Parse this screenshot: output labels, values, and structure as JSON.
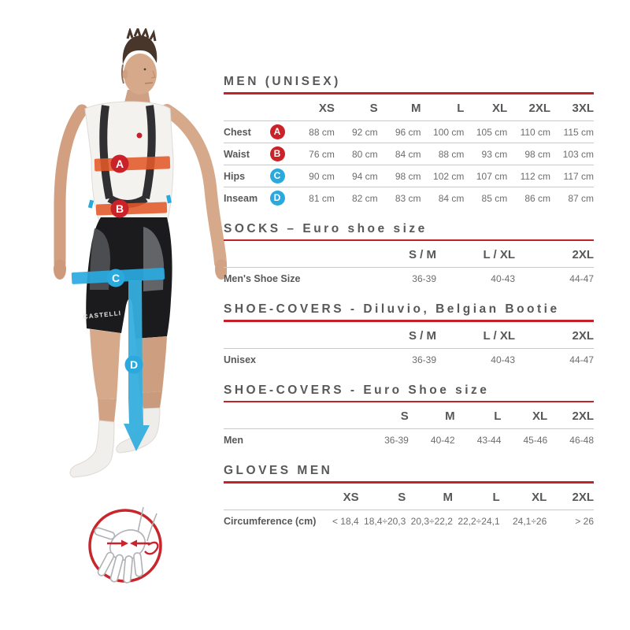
{
  "colors": {
    "accent_red": "#C2232B",
    "badge_red": "#CB2128",
    "band_orange": "#E25829",
    "badge_blue": "#2AA9DF",
    "title_gray": "#57585A",
    "value_gray": "#6C6D70"
  },
  "figure": {
    "brand": "CASTELLI",
    "markers": [
      {
        "letter": "A",
        "color": "#CB2128"
      },
      {
        "letter": "B",
        "color": "#CB2128"
      },
      {
        "letter": "C",
        "color": "#2AA9DF"
      },
      {
        "letter": "D",
        "color": "#2AA9DF"
      }
    ]
  },
  "tables": [
    {
      "title": "MEN (UNISEX)",
      "columns": [
        "XS",
        "S",
        "M",
        "L",
        "XL",
        "2XL",
        "3XL"
      ],
      "rows": [
        {
          "label": "Chest",
          "marker": "A",
          "marker_color": "#CB2128",
          "values": [
            "88 cm",
            "92 cm",
            "96 cm",
            "100 cm",
            "105 cm",
            "110 cm",
            "115 cm"
          ]
        },
        {
          "label": "Waist",
          "marker": "B",
          "marker_color": "#CB2128",
          "values": [
            "76 cm",
            "80 cm",
            "84 cm",
            "88 cm",
            "93 cm",
            "98 cm",
            "103 cm"
          ]
        },
        {
          "label": "Hips",
          "marker": "C",
          "marker_color": "#2AA9DF",
          "values": [
            "90 cm",
            "94 cm",
            "98 cm",
            "102 cm",
            "107 cm",
            "112 cm",
            "117 cm"
          ]
        },
        {
          "label": "Inseam",
          "marker": "D",
          "marker_color": "#2AA9DF",
          "values": [
            "81 cm",
            "82 cm",
            "83 cm",
            "84 cm",
            "85 cm",
            "86 cm",
            "87 cm"
          ]
        }
      ]
    },
    {
      "title": "SOCKS – Euro shoe size",
      "columns": [
        "S / M",
        "L / XL",
        "2XL"
      ],
      "rows": [
        {
          "label": "Men's Shoe Size",
          "values": [
            "36-39",
            "40-43",
            "44-47"
          ]
        }
      ]
    },
    {
      "title": "SHOE-COVERS - Diluvio, Belgian Bootie",
      "columns": [
        "S / M",
        "L / XL",
        "2XL"
      ],
      "rows": [
        {
          "label": "Unisex",
          "values": [
            "36-39",
            "40-43",
            "44-47"
          ]
        }
      ]
    },
    {
      "title": "SHOE-COVERS - Euro Shoe size",
      "columns": [
        "S",
        "M",
        "L",
        "XL",
        "2XL"
      ],
      "rows": [
        {
          "label": "Men",
          "values": [
            "36-39",
            "40-42",
            "43-44",
            "45-46",
            "46-48"
          ]
        }
      ]
    },
    {
      "title": "GLOVES MEN",
      "columns": [
        "XS",
        "S",
        "M",
        "L",
        "XL",
        "2XL"
      ],
      "rows": [
        {
          "label": "Circumference (cm)",
          "values": [
            "< 18,4",
            "18,4÷20,3",
            "20,3÷22,2",
            "22,2÷24,1",
            "24,1÷26",
            "> 26"
          ]
        }
      ]
    }
  ]
}
